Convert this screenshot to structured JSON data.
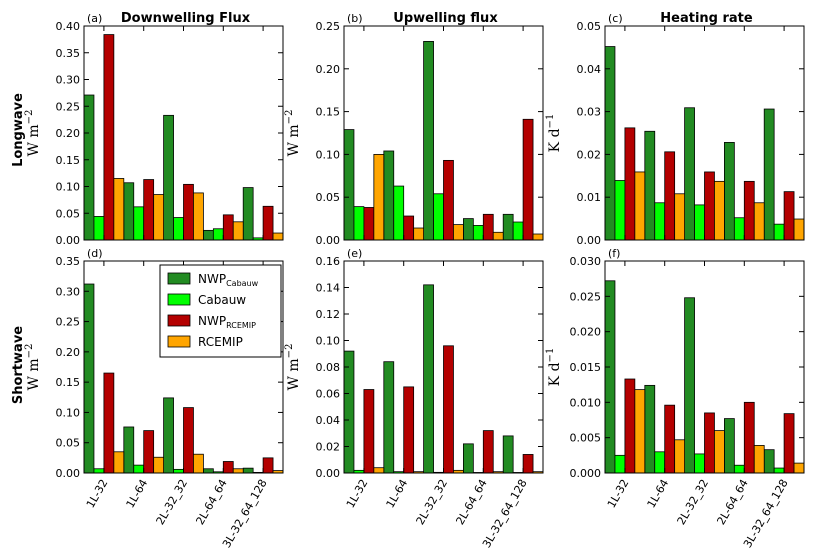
{
  "colors": {
    "nwp_cabauw": "#228b22",
    "cabauw": "#00ff00",
    "nwp_rcemip": "#b40000",
    "rcemip": "#ffa500"
  },
  "row_labels": [
    "Longwave",
    "Shortwave"
  ],
  "legend": {
    "placement": "upper-right of panel (d)",
    "entries": [
      {
        "main": "NWP",
        "sub": "Cabauw",
        "key": "nwp_cabauw"
      },
      {
        "main": "Cabauw",
        "sub": "",
        "key": "cabauw"
      },
      {
        "main": "NWP",
        "sub": "RCEMIP",
        "key": "nwp_rcemip"
      },
      {
        "main": "RCEMIP",
        "sub": "",
        "key": "rcemip"
      }
    ]
  },
  "chart_data": [
    {
      "panel": "(a)",
      "title": "Downwelling Flux",
      "type": "bar",
      "ylabel": "W m−2",
      "ylim": [
        0,
        0.4
      ],
      "yticks": [
        "0.00",
        "0.05",
        "0.10",
        "0.15",
        "0.20",
        "0.25",
        "0.30",
        "0.35",
        "0.40"
      ],
      "categories": [
        "1L-32",
        "1L-64",
        "2L-32_32",
        "2L-64_64",
        "3L-32_64_128"
      ],
      "series": [
        {
          "name": "NWP_Cabauw",
          "values": [
            0.271,
            0.107,
            0.233,
            0.018,
            0.098
          ]
        },
        {
          "name": "Cabauw",
          "values": [
            0.044,
            0.062,
            0.042,
            0.021,
            0.004
          ]
        },
        {
          "name": "NWP_RCEMIP",
          "values": [
            0.384,
            0.113,
            0.104,
            0.047,
            0.063
          ]
        },
        {
          "name": "RCEMIP",
          "values": [
            0.115,
            0.085,
            0.088,
            0.034,
            0.013
          ]
        }
      ]
    },
    {
      "panel": "(b)",
      "title": "Upwelling flux",
      "type": "bar",
      "ylabel": "W m−2",
      "ylim": [
        0,
        0.25
      ],
      "yticks": [
        "0.00",
        "0.05",
        "0.10",
        "0.15",
        "0.20",
        "0.25"
      ],
      "categories": [
        "1L-32",
        "1L-64",
        "2L-32_32",
        "2L-64_64",
        "3L-32_64_128"
      ],
      "series": [
        {
          "name": "NWP_Cabauw",
          "values": [
            0.129,
            0.104,
            0.232,
            0.025,
            0.03
          ]
        },
        {
          "name": "Cabauw",
          "values": [
            0.039,
            0.063,
            0.054,
            0.017,
            0.021
          ]
        },
        {
          "name": "NWP_RCEMIP",
          "values": [
            0.038,
            0.028,
            0.093,
            0.03,
            0.141
          ]
        },
        {
          "name": "RCEMIP",
          "values": [
            0.1,
            0.014,
            0.018,
            0.009,
            0.007
          ]
        }
      ]
    },
    {
      "panel": "(c)",
      "title": "Heating rate",
      "type": "bar",
      "ylabel": "K d−1",
      "ylim": [
        0,
        0.05
      ],
      "yticks": [
        "0.00",
        "0.01",
        "0.02",
        "0.03",
        "0.04",
        "0.05"
      ],
      "categories": [
        "1L-32",
        "1L-64",
        "2L-32_32",
        "2L-64_64",
        "3L-32_64_128"
      ],
      "series": [
        {
          "name": "NWP_Cabauw",
          "values": [
            0.0452,
            0.0254,
            0.0309,
            0.0228,
            0.0306
          ]
        },
        {
          "name": "Cabauw",
          "values": [
            0.0139,
            0.0087,
            0.0082,
            0.0052,
            0.0037
          ]
        },
        {
          "name": "NWP_RCEMIP",
          "values": [
            0.0262,
            0.0206,
            0.0159,
            0.0137,
            0.0113
          ]
        },
        {
          "name": "RCEMIP",
          "values": [
            0.0159,
            0.0108,
            0.0137,
            0.0087,
            0.0049
          ]
        }
      ]
    },
    {
      "panel": "(d)",
      "title": "",
      "type": "bar",
      "ylabel": "W m−2",
      "ylim": [
        0,
        0.35
      ],
      "yticks": [
        "0.00",
        "0.05",
        "0.10",
        "0.15",
        "0.20",
        "0.25",
        "0.30",
        "0.35"
      ],
      "categories": [
        "1L-32",
        "1L-64",
        "2L-32_32",
        "2L-64_64",
        "3L-32_64_128"
      ],
      "series": [
        {
          "name": "NWP_Cabauw",
          "values": [
            0.312,
            0.076,
            0.124,
            0.007,
            0.008
          ]
        },
        {
          "name": "Cabauw",
          "values": [
            0.007,
            0.013,
            0.006,
            0.002,
            0.001
          ]
        },
        {
          "name": "NWP_RCEMIP",
          "values": [
            0.165,
            0.07,
            0.108,
            0.019,
            0.025
          ]
        },
        {
          "name": "RCEMIP",
          "values": [
            0.035,
            0.026,
            0.031,
            0.007,
            0.004
          ]
        }
      ]
    },
    {
      "panel": "(e)",
      "title": "",
      "type": "bar",
      "ylabel": "W m−2",
      "ylim": [
        0,
        0.16
      ],
      "yticks": [
        "0.00",
        "0.02",
        "0.04",
        "0.06",
        "0.08",
        "0.10",
        "0.12",
        "0.14",
        "0.16"
      ],
      "categories": [
        "1L-32",
        "1L-64",
        "2L-32_32",
        "2L-64_64",
        "3L-32_64_128"
      ],
      "series": [
        {
          "name": "NWP_Cabauw",
          "values": [
            0.092,
            0.084,
            0.142,
            0.022,
            0.028
          ]
        },
        {
          "name": "Cabauw",
          "values": [
            0.002,
            0.001,
            0.0005,
            0.0004,
            0.0004
          ]
        },
        {
          "name": "NWP_RCEMIP",
          "values": [
            0.063,
            0.065,
            0.096,
            0.032,
            0.014
          ]
        },
        {
          "name": "RCEMIP",
          "values": [
            0.004,
            0.001,
            0.002,
            0.001,
            0.001
          ]
        }
      ]
    },
    {
      "panel": "(f)",
      "title": "",
      "type": "bar",
      "ylabel": "K d−1",
      "ylim": [
        0,
        0.03
      ],
      "yticks": [
        "0.000",
        "0.005",
        "0.010",
        "0.015",
        "0.020",
        "0.025",
        "0.030"
      ],
      "categories": [
        "1L-32",
        "1L-64",
        "2L-32_32",
        "2L-64_64",
        "3L-32_64_128"
      ],
      "series": [
        {
          "name": "NWP_Cabauw",
          "values": [
            0.0272,
            0.0124,
            0.0248,
            0.0077,
            0.0033
          ]
        },
        {
          "name": "Cabauw",
          "values": [
            0.0025,
            0.003,
            0.0027,
            0.0011,
            0.0007
          ]
        },
        {
          "name": "NWP_RCEMIP",
          "values": [
            0.0133,
            0.0096,
            0.0085,
            0.01,
            0.0084
          ]
        },
        {
          "name": "RCEMIP",
          "values": [
            0.0118,
            0.0047,
            0.006,
            0.0039,
            0.0014
          ]
        }
      ]
    }
  ]
}
